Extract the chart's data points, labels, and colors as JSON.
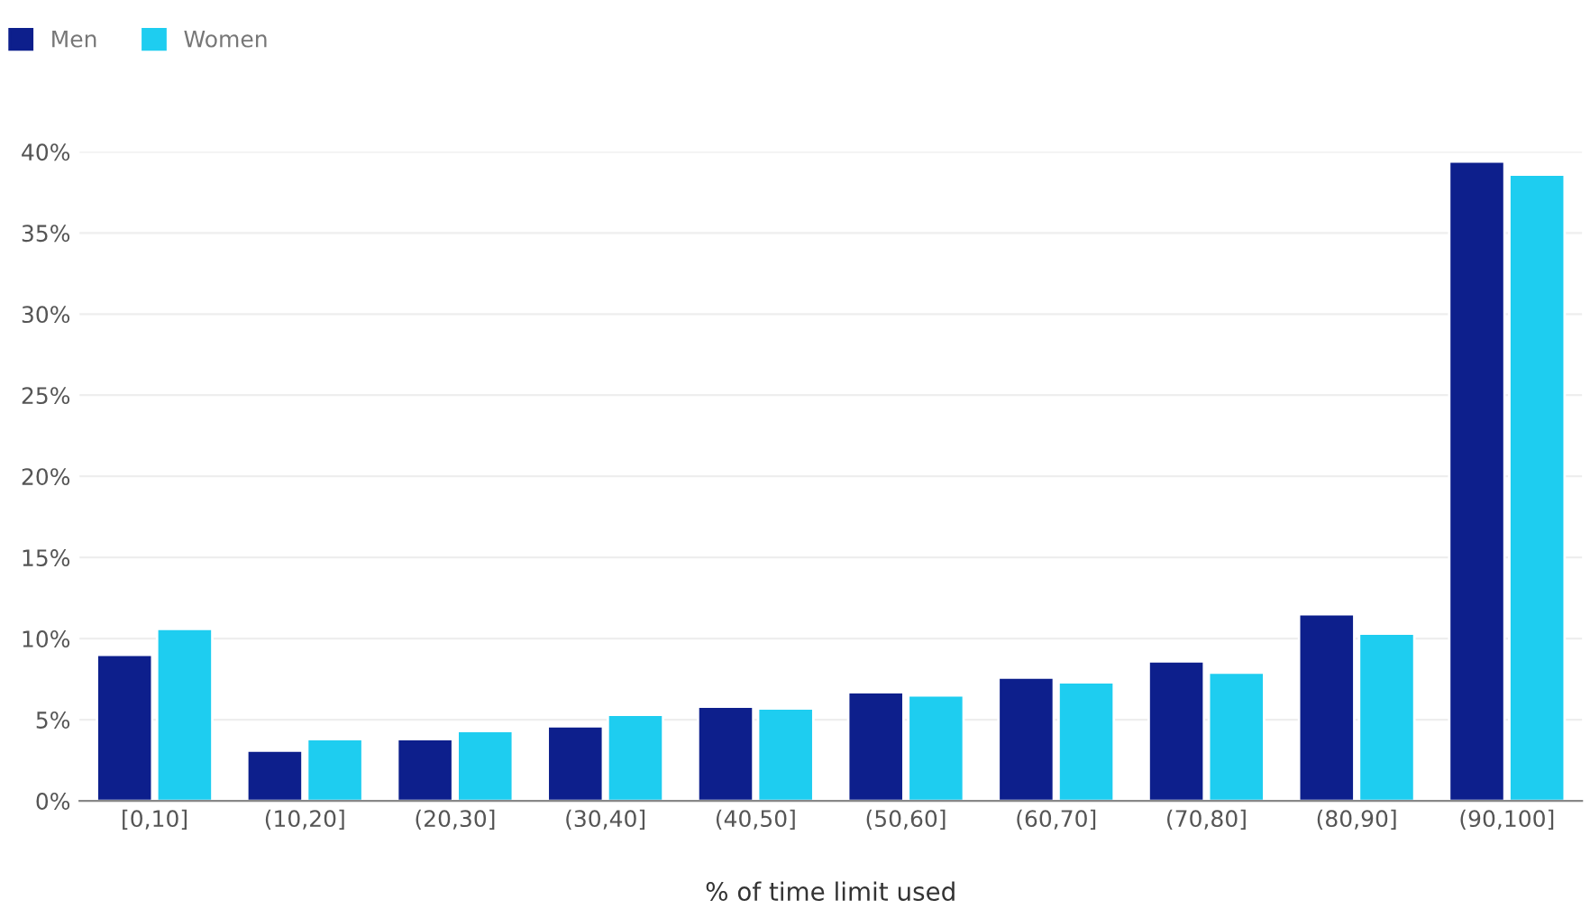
{
  "chart_data": {
    "type": "bar",
    "xlabel": "% of time limit used",
    "categories": [
      "[0,10]",
      "(10,20]",
      "(20,30]",
      "(30,40]",
      "(40,50]",
      "(50,60]",
      "(60,70]",
      "(70,80]",
      "(80,90]",
      "(90,100]"
    ],
    "series": [
      {
        "name": "Men",
        "color": "#0d1f8c",
        "values": [
          9.0,
          3.1,
          3.8,
          4.6,
          5.8,
          6.7,
          7.6,
          8.6,
          11.5,
          39.4
        ]
      },
      {
        "name": "Women",
        "color": "#1ecdf0",
        "values": [
          10.6,
          3.8,
          4.3,
          5.3,
          5.7,
          6.5,
          7.3,
          7.9,
          10.3,
          38.6
        ]
      }
    ],
    "ylim": [
      0,
      40
    ],
    "yticks": [
      {
        "value": 0,
        "label": "0%"
      },
      {
        "value": 5,
        "label": "5%"
      },
      {
        "value": 10,
        "label": "10%"
      },
      {
        "value": 15,
        "label": "15%"
      },
      {
        "value": 20,
        "label": "20%"
      },
      {
        "value": 25,
        "label": "25%"
      },
      {
        "value": 30,
        "label": "30%"
      },
      {
        "value": 35,
        "label": "35%"
      },
      {
        "value": 40,
        "label": "40%"
      }
    ],
    "grid": "y",
    "legend": "top left"
  }
}
